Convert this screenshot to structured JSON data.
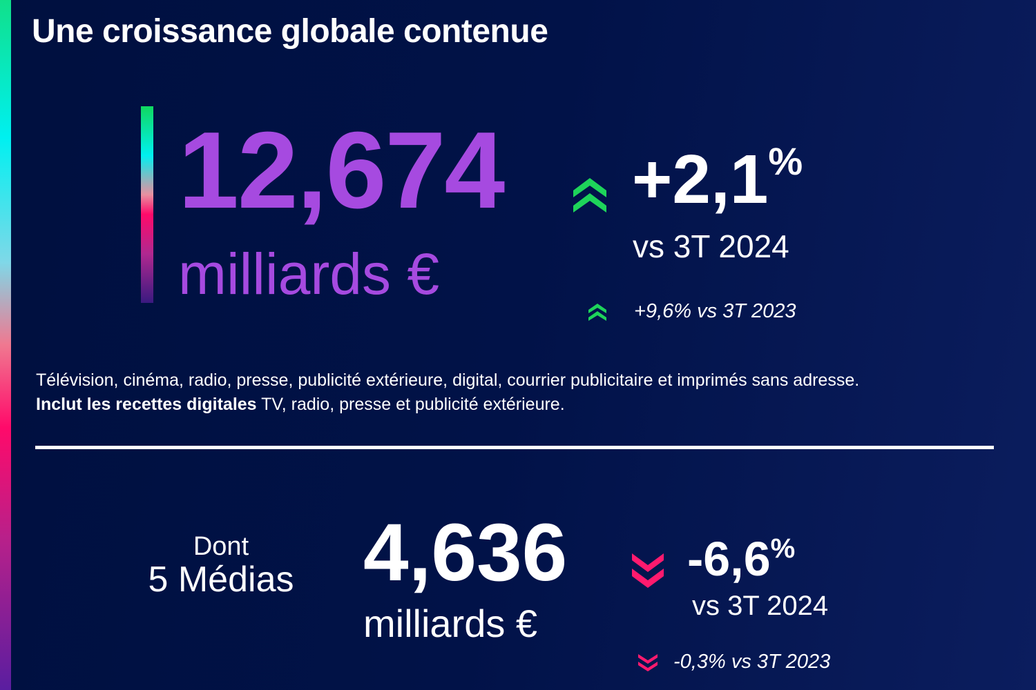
{
  "colors": {
    "accent_purple": "#a64ae0",
    "up_green": "#1ed45a",
    "down_pink": "#ff1a6e",
    "background": "#00103f"
  },
  "title": "Une croissance globale contenue",
  "total": {
    "value": "12,674",
    "unit": "milliards €",
    "change": "+2,1",
    "change_suffix": "%",
    "change_ref": "vs 3T 2024",
    "change_icon": "double-chevron-up-icon",
    "secondary": "+9,6% vs 3T 2023",
    "secondary_icon": "double-chevron-up-icon"
  },
  "description": {
    "line1": "Télévision, cinéma, radio, presse, publicité extérieure, digital, courrier publicitaire et imprimés sans adresse.",
    "line2_bold": "Inclut les recettes digitales",
    "line2_rest": " TV, radio, presse et publicité extérieure."
  },
  "medias": {
    "label1": "Dont",
    "label2": "5 Médias",
    "value": "4,636",
    "unit": "milliards €",
    "change": "-6,6",
    "change_suffix": "%",
    "change_ref": "vs 3T 2024",
    "change_icon": "double-chevron-down-icon",
    "secondary": "-0,3% vs 3T 2023",
    "secondary_icon": "double-chevron-down-icon"
  }
}
